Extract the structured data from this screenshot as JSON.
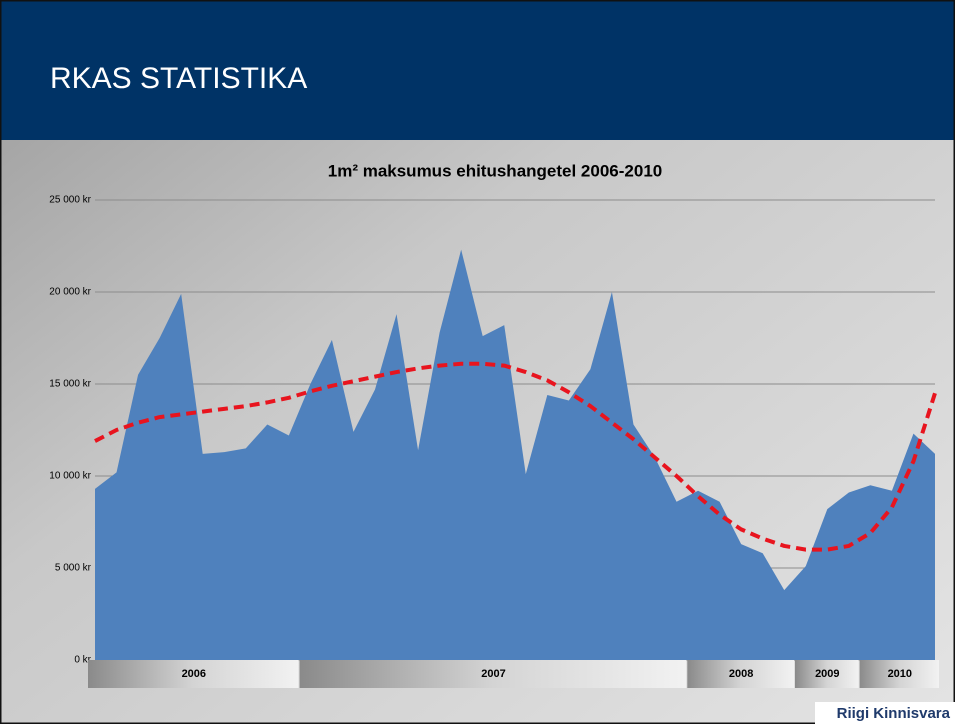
{
  "slide_title": "RKAS STATISTIKA",
  "logo": "Riigi Kinnisvara",
  "chart_data": {
    "type": "area",
    "title": "1m² maksumus ehitushangetel 2006-2010",
    "categories": [
      null,
      null,
      null,
      null,
      null,
      null,
      null,
      null,
      null,
      null,
      null,
      null,
      null,
      null,
      null,
      null,
      null,
      null,
      null,
      null,
      null,
      null,
      null,
      null,
      null,
      null,
      null,
      null,
      null,
      null,
      null,
      null,
      null,
      null,
      null,
      null,
      null,
      null,
      null,
      null
    ],
    "year_groups": [
      {
        "label": "2006",
        "count": 10
      },
      {
        "label": "2007",
        "count": 18
      },
      {
        "label": "2008",
        "count": 5
      },
      {
        "label": "2009",
        "count": 3
      },
      {
        "label": "2010",
        "count": 4
      }
    ],
    "series": [
      {
        "color": "#4f81bd",
        "values": [
          9300,
          10200,
          15500,
          17500,
          19900,
          11200,
          11300,
          11500,
          12800,
          12200,
          15000,
          17400,
          12400,
          14700,
          18800,
          11400,
          17800,
          22300,
          17600,
          18200,
          10100,
          14400,
          14100,
          15800,
          20000,
          12800,
          11000,
          8600,
          9200,
          8600,
          6300,
          5800,
          3800,
          5100,
          8200,
          9100,
          9500,
          9200,
          12300,
          11200
        ]
      },
      {
        "color": "#e8141e",
        "values": [
          11900,
          12500,
          12900,
          13200,
          13350,
          13500,
          13650,
          13800,
          14000,
          14250,
          14600,
          14900,
          15150,
          15400,
          15650,
          15850,
          16000,
          16100,
          16100,
          16000,
          15650,
          15200,
          14550,
          13800,
          12900,
          12000,
          11000,
          10000,
          8900,
          7900,
          7100,
          6600,
          6200,
          6000,
          6000,
          6200,
          6900,
          8300,
          10800,
          14500
        ]
      }
    ],
    "ylim": [
      0,
      25000
    ],
    "yticks": [
      {
        "value": 0,
        "label": "0 kr"
      },
      {
        "value": 5000,
        "label": "5 000 kr"
      },
      {
        "value": 10000,
        "label": "10 000 kr"
      },
      {
        "value": 15000,
        "label": "15 000 kr"
      },
      {
        "value": 20000,
        "label": "20 000 kr"
      },
      {
        "value": 25000,
        "label": "25 000 kr"
      }
    ],
    "grid": true
  }
}
